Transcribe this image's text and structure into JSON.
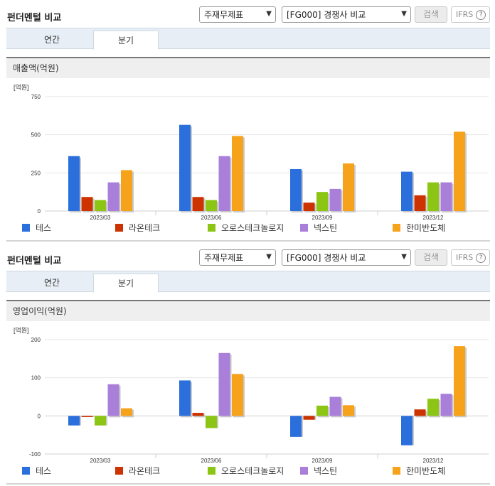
{
  "panels": [
    {
      "title": "펀더멘털 비교",
      "selects": {
        "type": "주재무제표",
        "group": "[FG000] 경쟁사 비교"
      },
      "search_label": "검색",
      "ifrs_label": "IFRS",
      "help_glyph": "?",
      "tabs": [
        "연간",
        "분기"
      ],
      "active_tab": "분기",
      "metric_title": "매출액(억원)",
      "chart_data": {
        "type": "bar",
        "unit_label": "[억원]",
        "categories": [
          "2023/03",
          "2023/06",
          "2023/09",
          "2023/12"
        ],
        "ylim": [
          0,
          750
        ],
        "yticks": [
          0,
          250,
          500,
          750
        ],
        "legend_position": "bottom",
        "series": [
          {
            "name": "테스",
            "color": "#2a6fdb",
            "values": [
              360,
              565,
              275,
              258
            ]
          },
          {
            "name": "라온테크",
            "color": "#cc3300",
            "values": [
              92,
              92,
              55,
              103
            ]
          },
          {
            "name": "오로스테크놀로지",
            "color": "#8cc514",
            "values": [
              72,
              72,
              125,
              188
            ]
          },
          {
            "name": "넥스틴",
            "color": "#a97fd9",
            "values": [
              188,
              360,
              145,
              188
            ]
          },
          {
            "name": "한미반도체",
            "color": "#f7a21b",
            "values": [
              268,
              492,
              312,
              520
            ]
          }
        ]
      }
    },
    {
      "title": "펀더멘털 비교",
      "selects": {
        "type": "주재무제표",
        "group": "[FG000] 경쟁사 비교"
      },
      "search_label": "검색",
      "ifrs_label": "IFRS",
      "help_glyph": "?",
      "tabs": [
        "연간",
        "분기"
      ],
      "active_tab": "분기",
      "metric_title": "영업이익(억원)",
      "chart_data": {
        "type": "bar",
        "unit_label": "[억원]",
        "categories": [
          "2023/03",
          "2023/06",
          "2023/09",
          "2023/12"
        ],
        "ylim": [
          -100,
          200
        ],
        "yticks": [
          -100,
          0,
          100,
          200
        ],
        "legend_position": "bottom",
        "series": [
          {
            "name": "테스",
            "color": "#2a6fdb",
            "values": [
              -25,
              93,
              -55,
              -77
            ]
          },
          {
            "name": "라온테크",
            "color": "#cc3300",
            "values": [
              -3,
              8,
              -10,
              17
            ]
          },
          {
            "name": "오로스테크놀로지",
            "color": "#8cc514",
            "values": [
              -25,
              -32,
              27,
              45
            ]
          },
          {
            "name": "넥스틴",
            "color": "#a97fd9",
            "values": [
              83,
              165,
              50,
              58
            ]
          },
          {
            "name": "한미반도체",
            "color": "#f7a21b",
            "values": [
              20,
              110,
              28,
              183
            ]
          }
        ]
      }
    }
  ]
}
